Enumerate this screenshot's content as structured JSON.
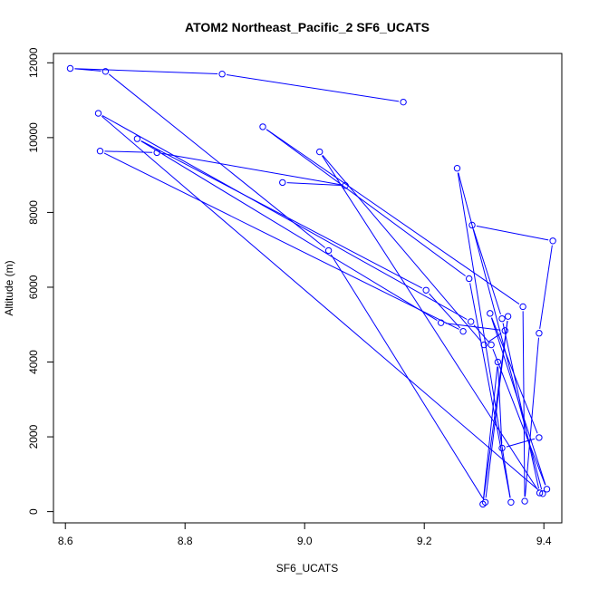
{
  "chart_data": {
    "type": "line",
    "title": "ATOM2 Northeast_Pacific_2 SF6_UCATS",
    "xlabel": "SF6_UCATS",
    "ylabel": "Altitude (m)",
    "xlim": [
      8.58,
      9.43
    ],
    "ylim": [
      -300,
      12250
    ],
    "xticks": [
      "8.6",
      "8.8",
      "9.0",
      "9.2",
      "9.4"
    ],
    "yticks": [
      "0",
      "2000",
      "4000",
      "6000",
      "8000",
      "10000",
      "12000"
    ],
    "grid": false,
    "marker": "open-circle",
    "line_color": "#0000ff",
    "series": [
      {
        "x": [
          9.165,
          8.862,
          8.608,
          8.667,
          9.04,
          9.302,
          9.34,
          9.298,
          9.323,
          9.33,
          9.392,
          9.31,
          9.405,
          9.312,
          9.278,
          8.655,
          9.398,
          9.255,
          9.345,
          9.275,
          8.93,
          9.365,
          9.368,
          9.392,
          9.415,
          9.28,
          9.33,
          9.393,
          9.025,
          9.3,
          9.335,
          9.228,
          8.72,
          9.203,
          9.265,
          8.658,
          8.753,
          9.068,
          8.963
        ],
        "y": [
          10950,
          11700,
          11850,
          11770,
          6980,
          250,
          5220,
          200,
          4000,
          1700,
          1980,
          5300,
          600,
          4460,
          5080,
          10650,
          480,
          9180,
          250,
          6230,
          10290,
          5480,
          280,
          4770,
          7240,
          7660,
          5160,
          500,
          9620,
          4460,
          4840,
          5050,
          9970,
          5920,
          4820,
          9640,
          9600,
          8720,
          8800
        ]
      }
    ]
  }
}
